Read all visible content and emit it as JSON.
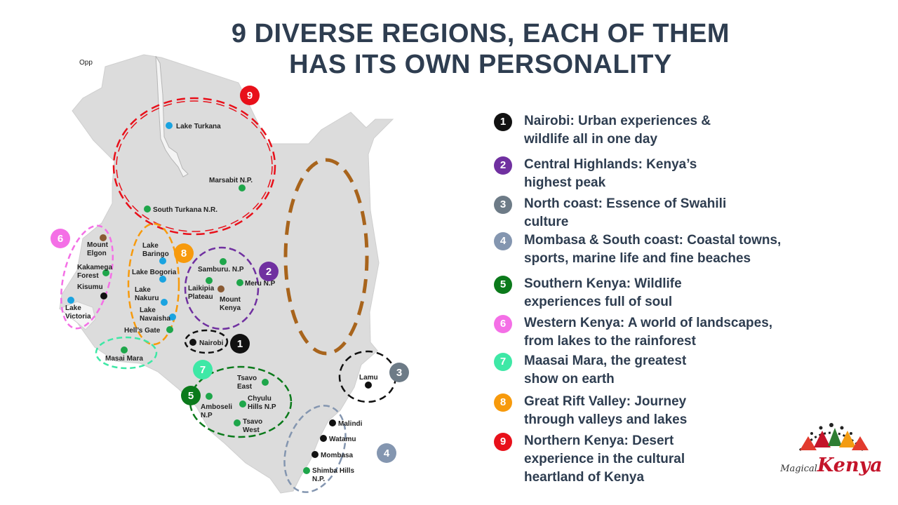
{
  "title": {
    "line1": "9 DIVERSE REGIONS,  EACH OF THEM",
    "line2": "HAS ITS OWN PERSONALITY"
  },
  "corner_label": "Opp",
  "colors": {
    "title": "#2e3d50",
    "map_fill": "#dcdcdc",
    "park_dot": "#1ea64a",
    "lake_dot": "#1aa3e0",
    "city_dot": "#111111",
    "mountain_dot": "#8a5a33"
  },
  "legend": [
    {
      "num": "1",
      "color": "#111111",
      "text": "Nairobi: Urban experiences &\nwildlife all in one day"
    },
    {
      "num": "2",
      "color": "#7030a0",
      "text": "Central Highlands: Kenya’s\nhighest peak"
    },
    {
      "num": "3",
      "color": "#6d7b87",
      "text": "North coast: Essence of Swahili\nculture"
    },
    {
      "num": "4",
      "color": "#8496b0",
      "text": "Mombasa & South coast: Coastal towns,\nsports, marine life and fine beaches"
    },
    {
      "num": "5",
      "color": "#0b7a1b",
      "text": "Southern Kenya: Wildlife\nexperiences full of soul"
    },
    {
      "num": "6",
      "color": "#f46fe6",
      "text": "Western Kenya: A world of landscapes,\nfrom lakes to the rainforest"
    },
    {
      "num": "7",
      "color": "#3ee8a6",
      "text": "Maasai Mara, the greatest\nshow on earth"
    },
    {
      "num": "8",
      "color": "#f79a0c",
      "text": "Great Rift Valley: Journey\nthrough valleys and lakes"
    },
    {
      "num": "9",
      "color": "#e8101a",
      "text": "Northern Kenya: Desert\nexperience in the cultural\nheartland of Kenya"
    }
  ],
  "map": {
    "region_badges": {
      "r1": "1",
      "r2": "2",
      "r3": "3",
      "r4": "4",
      "r5": "5",
      "r6": "6",
      "r7": "7",
      "r8": "8",
      "r9": "9"
    },
    "places": {
      "lake_turkana": "Lake Turkana",
      "marsabit": "Marsabit N.P.",
      "south_turkana": "South Turkana N.R.",
      "mount_elgon": "Mount\nElgon",
      "kakamega": "Kakamega\nForest",
      "kisumu": "Kisumu",
      "lake_victoria": "Lake\nVictoria",
      "lake_baringo": "Lake\nBaringo",
      "lake_bogoria": "Lake Bogoria",
      "lake_nakuru": "Lake\nNakuru",
      "lake_navaisha": "Lake\nNavaisha",
      "hells_gate": "Hell’s Gate",
      "samburu": "Samburu. N.P",
      "meru": "Meru N.P",
      "laikipia": "Laikipia\nPlateau",
      "mount_kenya": "Mount\nKenya",
      "nairobi": "Nairobi",
      "masai_mara": "Masai Mara",
      "tsavo_east": "Tsavo\nEast",
      "chyulu": "Chyulu\nHills N.P",
      "amboseli": "Amboseli\nN.P",
      "tsavo_west": "Tsavo\nWest",
      "lamu": "Lamu",
      "malindi": "Malindi",
      "watamu": "Watamu",
      "mombasa": "Mombasa",
      "shimba": "Shimba Hills\nN.P."
    }
  },
  "logo": {
    "magical": "Magical",
    "kenya": "Kenya"
  }
}
